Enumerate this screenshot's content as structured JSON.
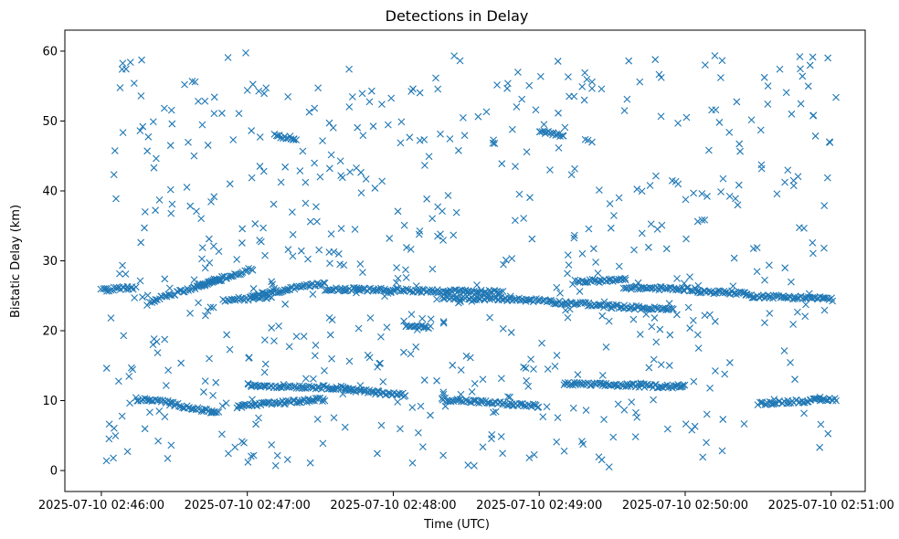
{
  "chart_data": {
    "type": "scatter",
    "title": "Detections in Delay",
    "xlabel": "Time (UTC)",
    "ylabel": "Bistatic Delay (km)",
    "marker": "x",
    "color": "#1f77b4",
    "x_unit": "seconds after 2025-07-10 02:46:00",
    "xlim": [
      -15,
      314
    ],
    "ylim": [
      -3,
      63
    ],
    "xticks": [
      0,
      60,
      120,
      180,
      240,
      300
    ],
    "xtick_labels": [
      "2025-07-10 02:46:00",
      "2025-07-10 02:47:00",
      "2025-07-10 02:48:00",
      "2025-07-10 02:49:00",
      "2025-07-10 02:50:00",
      "2025-07-10 02:51:00"
    ],
    "yticks": [
      0,
      10,
      20,
      30,
      40,
      50,
      60
    ],
    "ytick_labels": [
      "0",
      "10",
      "20",
      "30",
      "40",
      "50",
      "60"
    ],
    "tracks": [
      {
        "t_start": 0,
        "t_end": 14,
        "delay_start": 25.8,
        "delay_end": 26.2
      },
      {
        "t_start": 20,
        "t_end": 50,
        "delay_start": 24.2,
        "delay_end": 27.5
      },
      {
        "t_start": 40,
        "t_end": 62,
        "delay_start": 26.5,
        "delay_end": 28.8
      },
      {
        "t_start": 50,
        "t_end": 70,
        "delay_start": 24.4,
        "delay_end": 24.8
      },
      {
        "t_start": 62,
        "t_end": 92,
        "delay_start": 25.0,
        "delay_end": 26.8
      },
      {
        "t_start": 92,
        "t_end": 165,
        "delay_start": 26.0,
        "delay_end": 25.5
      },
      {
        "t_start": 140,
        "t_end": 185,
        "delay_start": 24.8,
        "delay_end": 24.3
      },
      {
        "t_start": 185,
        "t_end": 205,
        "delay_start": 24.1,
        "delay_end": 23.7
      },
      {
        "t_start": 195,
        "t_end": 215,
        "delay_start": 27.0,
        "delay_end": 27.3
      },
      {
        "t_start": 205,
        "t_end": 235,
        "delay_start": 23.6,
        "delay_end": 23.0
      },
      {
        "t_start": 215,
        "t_end": 245,
        "delay_start": 26.2,
        "delay_end": 25.9
      },
      {
        "t_start": 245,
        "t_end": 265,
        "delay_start": 25.6,
        "delay_end": 25.4
      },
      {
        "t_start": 265,
        "t_end": 300,
        "delay_start": 25.0,
        "delay_end": 24.6
      },
      {
        "t_start": 14,
        "t_end": 28,
        "delay_start": 10.2,
        "delay_end": 9.8
      },
      {
        "t_start": 28,
        "t_end": 48,
        "delay_start": 9.6,
        "delay_end": 8.2
      },
      {
        "t_start": 56,
        "t_end": 92,
        "delay_start": 9.2,
        "delay_end": 10.2
      },
      {
        "t_start": 60,
        "t_end": 102,
        "delay_start": 12.2,
        "delay_end": 11.8
      },
      {
        "t_start": 100,
        "t_end": 125,
        "delay_start": 11.6,
        "delay_end": 10.8
      },
      {
        "t_start": 140,
        "t_end": 180,
        "delay_start": 10.2,
        "delay_end": 9.2
      },
      {
        "t_start": 190,
        "t_end": 240,
        "delay_start": 12.4,
        "delay_end": 12.0
      },
      {
        "t_start": 270,
        "t_end": 302,
        "delay_start": 9.6,
        "delay_end": 10.2
      },
      {
        "t_start": 180,
        "t_end": 190,
        "delay_start": 48.5,
        "delay_end": 48.0
      },
      {
        "t_start": 72,
        "t_end": 80,
        "delay_start": 47.8,
        "delay_end": 47.5
      },
      {
        "t_start": 125,
        "t_end": 135,
        "delay_start": 20.8,
        "delay_end": 20.5
      }
    ],
    "clutter": {
      "description": "scattered detections filling the plot area",
      "count": 640,
      "t_range": [
        0,
        302
      ],
      "delay_range": [
        0.5,
        60
      ]
    }
  }
}
